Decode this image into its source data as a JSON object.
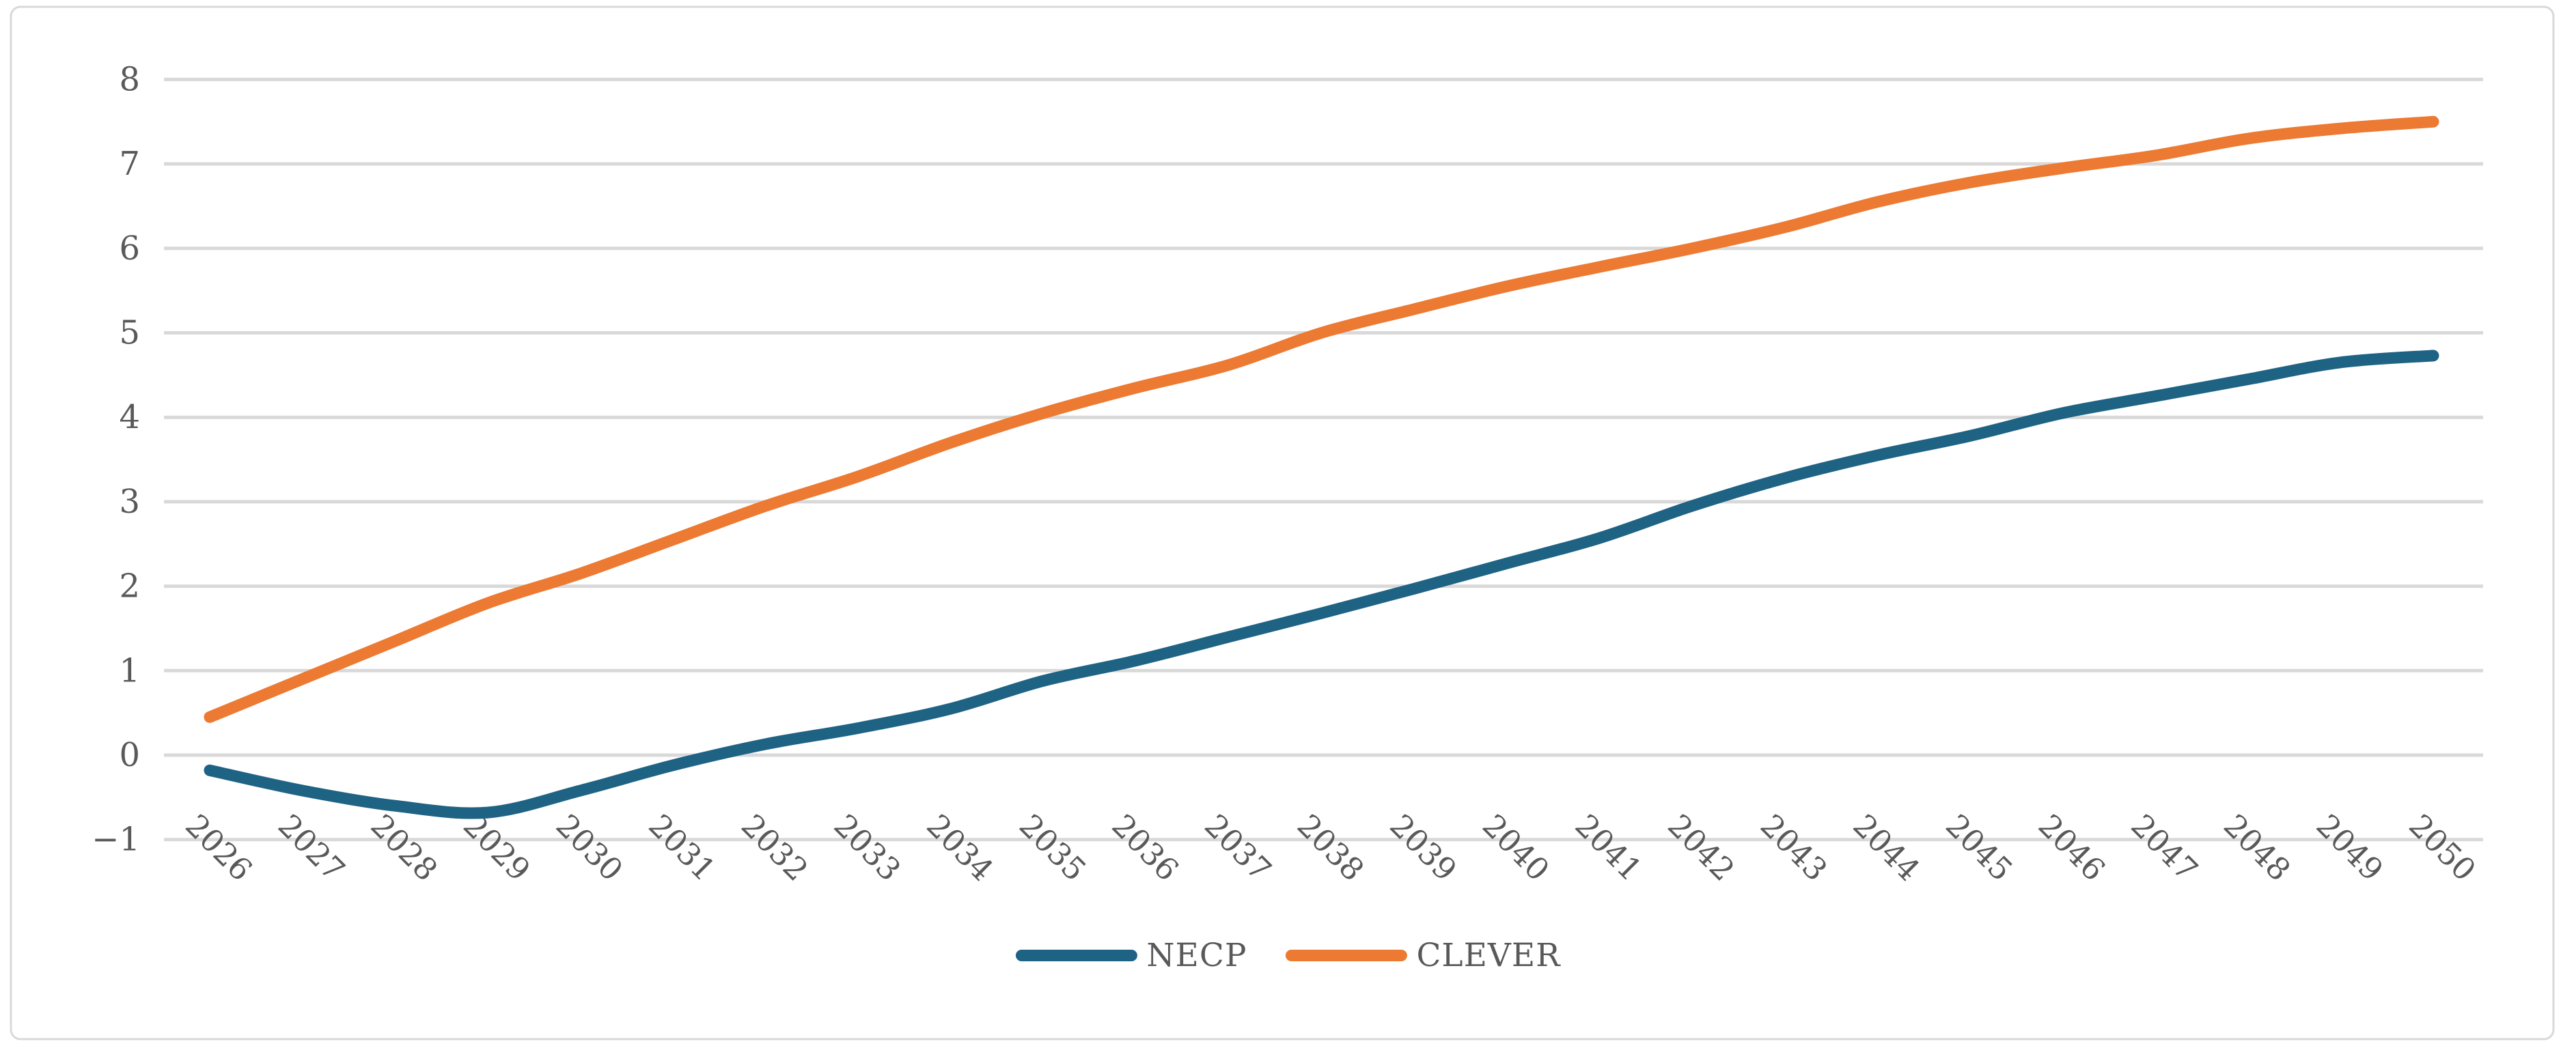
{
  "chart_data": {
    "type": "line",
    "title": "",
    "xlabel": "",
    "ylabel": "",
    "categories": [
      2026,
      2027,
      2028,
      2029,
      2030,
      2031,
      2032,
      2033,
      2034,
      2035,
      2036,
      2037,
      2038,
      2039,
      2040,
      2041,
      2042,
      2043,
      2044,
      2045,
      2046,
      2047,
      2048,
      2049,
      2050
    ],
    "series": [
      {
        "name": "NECP",
        "color": "#1F6384",
        "values": [
          -0.18,
          -0.42,
          -0.6,
          -0.68,
          -0.42,
          -0.12,
          0.13,
          0.32,
          0.55,
          0.88,
          1.12,
          1.4,
          1.68,
          1.97,
          2.27,
          2.57,
          2.95,
          3.28,
          3.55,
          3.78,
          4.05,
          4.25,
          4.45,
          4.65,
          4.73
        ]
      },
      {
        "name": "CLEVER",
        "color": "#EC7A33",
        "values": [
          0.45,
          0.9,
          1.35,
          1.8,
          2.15,
          2.55,
          2.95,
          3.3,
          3.7,
          4.05,
          4.35,
          4.62,
          5.0,
          5.28,
          5.55,
          5.78,
          6.0,
          6.25,
          6.55,
          6.78,
          6.95,
          7.1,
          7.3,
          7.42,
          7.5
        ]
      }
    ],
    "ylim": [
      -1,
      8
    ],
    "yticks": [
      -1,
      0,
      1,
      2,
      3,
      4,
      5,
      6,
      7,
      8
    ],
    "grid": "horizontal",
    "legend_position": "bottom",
    "smooth_lines": true,
    "colors": {
      "grid": "#D9D9D9",
      "border": "#D9D9D9",
      "tick_text": "#595959",
      "background": "#FFFFFF"
    }
  }
}
